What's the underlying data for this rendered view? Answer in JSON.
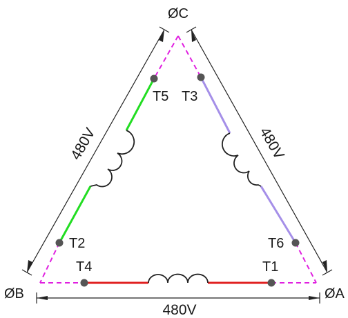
{
  "phases": {
    "c": "ØC",
    "b": "ØB",
    "a": "ØA"
  },
  "terminals": {
    "t1": "T1",
    "t2": "T2",
    "t3": "T3",
    "t4": "T4",
    "t5": "T5",
    "t6": "T6"
  },
  "voltages": {
    "left": "480V",
    "right": "480V",
    "bottom": "480V"
  },
  "colors": {
    "delta_dashed": "#e020e0",
    "winding_c_b": "#22dd22",
    "winding_c_a": "#a58fe8",
    "winding_b_a": "#e02020",
    "coil": "#222222",
    "terminal_dot": "#555555",
    "dimension": "#222222"
  }
}
